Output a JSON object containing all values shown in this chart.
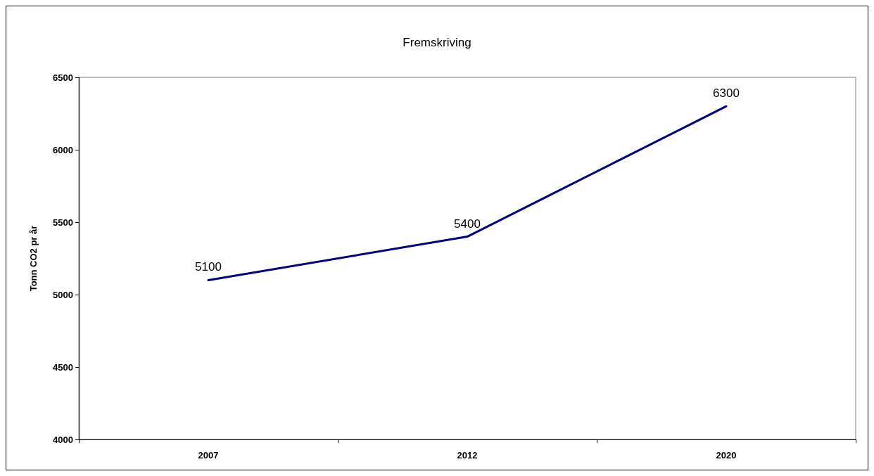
{
  "chart_data": {
    "type": "line",
    "title": "Fremskriving",
    "ylabel": "Tonn CO2 pr år",
    "categories": [
      "2007",
      "2012",
      "2020"
    ],
    "series": [
      {
        "color": "#000080",
        "values": [
          5100,
          5400,
          6300
        ]
      }
    ],
    "ylim": [
      4000,
      6500
    ],
    "yticks": [
      4000,
      4500,
      5000,
      5500,
      6000,
      6500
    ],
    "grid": false,
    "marker": "none",
    "line_style": "solid",
    "data_labels": true
  }
}
